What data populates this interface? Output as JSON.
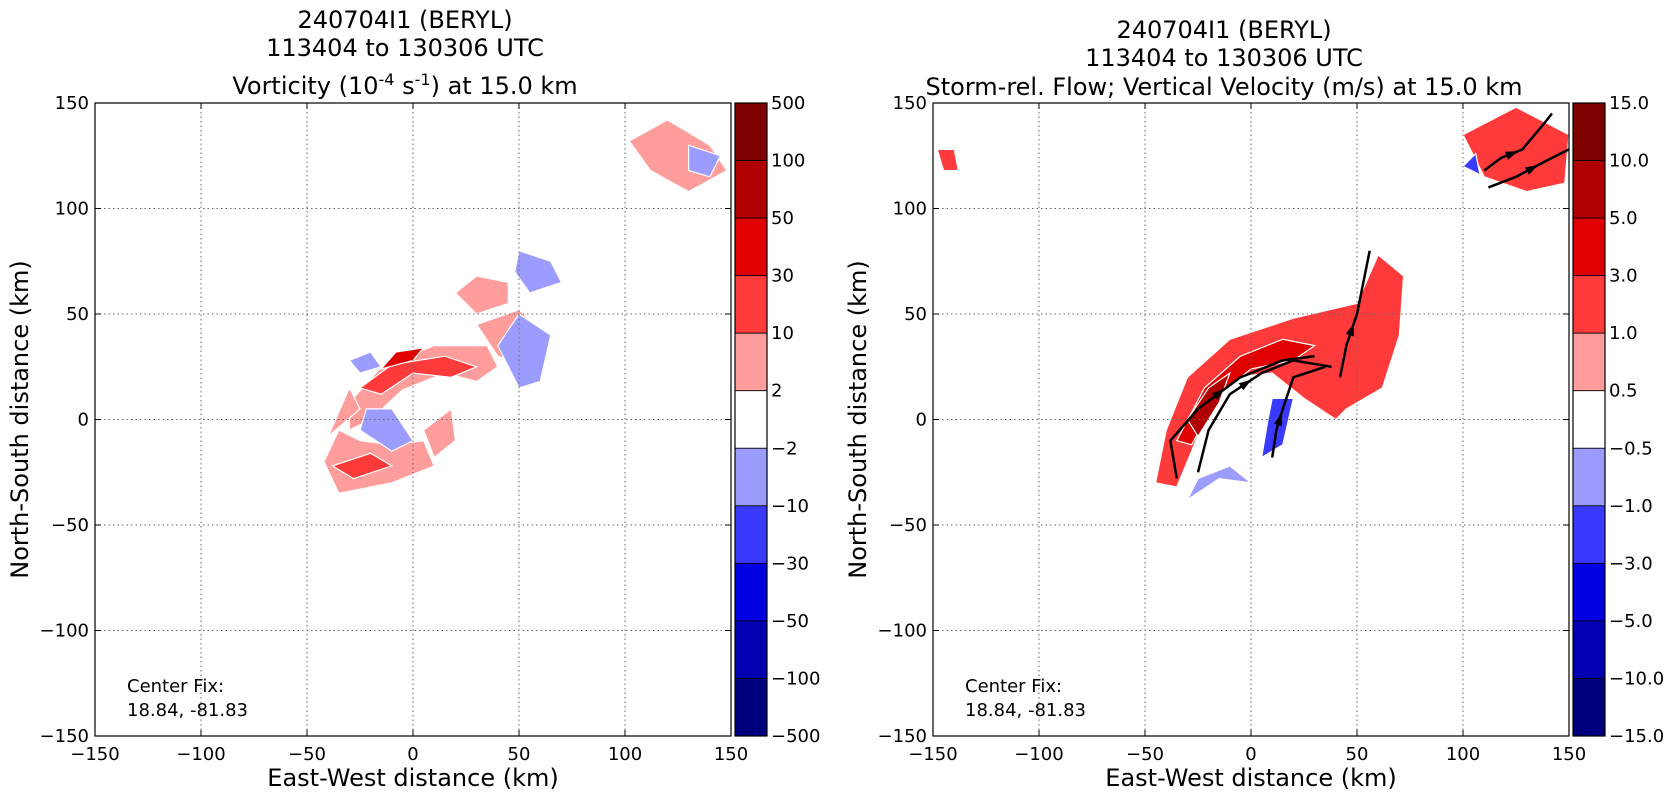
{
  "panels": [
    {
      "title_line1": "240704I1 (BERYL)",
      "title_line2": "113404 to 130306 UTC",
      "title_line3_pre": "Vorticity (10",
      "title_line3_sup1": "-4",
      "title_line3_mid": " s",
      "title_line3_sup2": "-1",
      "title_line3_post": ") at 15.0 km",
      "xlabel": "East-West distance (km)",
      "ylabel": "North-South distance (km)",
      "annotation_line1": "Center Fix:",
      "annotation_line2": "18.84, -81.83",
      "colorbar_labels": [
        "500",
        "100",
        "50",
        "30",
        "10",
        "2",
        "−2",
        "−10",
        "−30",
        "−50",
        "−100",
        "−500"
      ]
    },
    {
      "title_line1": "240704I1 (BERYL)",
      "title_line2": "113404 to 130306 UTC",
      "title_line3": "Storm-rel. Flow; Vertical Velocity (m/s) at 15.0 km",
      "xlabel": "East-West distance (km)",
      "ylabel": "North-South distance (km)",
      "annotation_line1": "Center Fix:",
      "annotation_line2": "18.84, -81.83",
      "colorbar_labels": [
        "15.0",
        "10.0",
        "5.0",
        "3.0",
        "1.0",
        "0.5",
        "−0.5",
        "−1.0",
        "−3.0",
        "−5.0",
        "−10.0",
        "−15.0"
      ]
    }
  ],
  "colors": {
    "levels": [
      "#7f0000",
      "#b00000",
      "#e00000",
      "#ff3a3a",
      "#ff9c9c",
      "#ffffff",
      "#9c9cff",
      "#3a3aff",
      "#0000e0",
      "#0000b0",
      "#00007f"
    ]
  },
  "chart_data": [
    {
      "type": "heatmap",
      "field": "vorticity",
      "xlim": [
        -150,
        150
      ],
      "ylim": [
        -150,
        150
      ],
      "xticks": [
        -150,
        -100,
        -50,
        0,
        50,
        100,
        150
      ],
      "yticks": [
        -150,
        -100,
        -50,
        0,
        50,
        100,
        150
      ],
      "xtick_labels": [
        "−150",
        "−100",
        "−50",
        "0",
        "50",
        "100",
        "150"
      ],
      "ytick_labels": [
        "−150",
        "−100",
        "−50",
        "0",
        "50",
        "100",
        "150"
      ],
      "grid": true,
      "color_levels": [
        -500,
        -100,
        -50,
        -30,
        -10,
        -2,
        2,
        10,
        30,
        50,
        100,
        500
      ],
      "regions": [
        {
          "category": 4,
          "points": [
            [
              -42,
              -20
            ],
            [
              -35,
              -35
            ],
            [
              -10,
              -30
            ],
            [
              10,
              -22
            ],
            [
              5,
              -10
            ],
            [
              -10,
              -12
            ],
            [
              -25,
              -10
            ],
            [
              -35,
              -5
            ]
          ]
        },
        {
          "category": 3,
          "points": [
            [
              -38,
              -22
            ],
            [
              -28,
              -28
            ],
            [
              -10,
              -22
            ],
            [
              -20,
              -16
            ]
          ]
        },
        {
          "category": 4,
          "points": [
            [
              -30,
              8
            ],
            [
              -15,
              25
            ],
            [
              10,
              35
            ],
            [
              35,
              35
            ],
            [
              40,
              25
            ],
            [
              30,
              18
            ],
            [
              15,
              22
            ],
            [
              -5,
              14
            ],
            [
              -20,
              0
            ],
            [
              -30,
              -5
            ]
          ]
        },
        {
          "category": 3,
          "points": [
            [
              -25,
              15
            ],
            [
              -10,
              26
            ],
            [
              15,
              30
            ],
            [
              30,
              25
            ],
            [
              18,
              20
            ],
            [
              0,
              22
            ],
            [
              -15,
              12
            ]
          ]
        },
        {
          "category": 2,
          "points": [
            [
              -15,
              24
            ],
            [
              -8,
              32
            ],
            [
              5,
              34
            ],
            [
              0,
              28
            ]
          ]
        },
        {
          "category": 4,
          "points": [
            [
              20,
              60
            ],
            [
              30,
              68
            ],
            [
              45,
              65
            ],
            [
              45,
              55
            ],
            [
              30,
              50
            ]
          ]
        },
        {
          "category": 4,
          "points": [
            [
              30,
              45
            ],
            [
              50,
              52
            ],
            [
              62,
              40
            ],
            [
              55,
              25
            ],
            [
              40,
              30
            ]
          ]
        },
        {
          "category": 4,
          "points": [
            [
              -40,
              -8
            ],
            [
              -30,
              15
            ],
            [
              -25,
              5
            ]
          ]
        },
        {
          "category": 4,
          "points": [
            [
              5,
              -5
            ],
            [
              18,
              5
            ],
            [
              20,
              -10
            ],
            [
              10,
              -18
            ]
          ]
        },
        {
          "category": 6,
          "points": [
            [
              50,
              50
            ],
            [
              65,
              40
            ],
            [
              60,
              18
            ],
            [
              50,
              15
            ],
            [
              40,
              35
            ]
          ]
        },
        {
          "category": 6,
          "points": [
            [
              50,
              80
            ],
            [
              65,
              75
            ],
            [
              70,
              65
            ],
            [
              55,
              60
            ],
            [
              48,
              70
            ]
          ]
        },
        {
          "category": 6,
          "points": [
            [
              -25,
              -5
            ],
            [
              -10,
              -15
            ],
            [
              0,
              -10
            ],
            [
              -10,
              5
            ],
            [
              -22,
              5
            ]
          ]
        },
        {
          "category": 6,
          "points": [
            [
              -30,
              28
            ],
            [
              -20,
              32
            ],
            [
              -15,
              25
            ],
            [
              -25,
              22
            ]
          ]
        },
        {
          "category": 4,
          "points": [
            [
              102,
              132
            ],
            [
              120,
              142
            ],
            [
              140,
              130
            ],
            [
              148,
              118
            ],
            [
              130,
              108
            ],
            [
              112,
              118
            ]
          ]
        },
        {
          "category": 6,
          "points": [
            [
              130,
              130
            ],
            [
              145,
              125
            ],
            [
              140,
              115
            ],
            [
              130,
              118
            ]
          ]
        }
      ],
      "annotation": "Center Fix: 18.84, -81.83"
    },
    {
      "type": "heatmap",
      "field": "vertical_velocity",
      "xlim": [
        -150,
        150
      ],
      "ylim": [
        -150,
        150
      ],
      "xticks": [
        -150,
        -100,
        -50,
        0,
        50,
        100,
        150
      ],
      "yticks": [
        -150,
        -100,
        -50,
        0,
        50,
        100,
        150
      ],
      "xtick_labels": [
        "−150",
        "−100",
        "−50",
        "0",
        "50",
        "100",
        "150"
      ],
      "ytick_labels": [
        "−150",
        "−100",
        "−50",
        "0",
        "50",
        "100",
        "150"
      ],
      "grid": true,
      "color_levels": [
        -15,
        -10,
        -5,
        -3,
        -1,
        -0.5,
        0.5,
        1,
        3,
        5,
        10,
        15
      ],
      "regions": [
        {
          "category": 3,
          "points": [
            [
              -45,
              -30
            ],
            [
              -40,
              -5
            ],
            [
              -30,
              20
            ],
            [
              -10,
              38
            ],
            [
              20,
              48
            ],
            [
              50,
              55
            ],
            [
              60,
              78
            ],
            [
              72,
              68
            ],
            [
              70,
              40
            ],
            [
              62,
              15
            ],
            [
              45,
              5
            ],
            [
              40,
              0
            ],
            [
              25,
              10
            ],
            [
              10,
              22
            ],
            [
              -10,
              20
            ],
            [
              -20,
              5
            ],
            [
              -28,
              -15
            ],
            [
              -35,
              -32
            ]
          ]
        },
        {
          "category": 2,
          "points": [
            [
              -35,
              -10
            ],
            [
              -22,
              15
            ],
            [
              -5,
              30
            ],
            [
              15,
              38
            ],
            [
              30,
              35
            ],
            [
              20,
              28
            ],
            [
              0,
              24
            ],
            [
              -15,
              12
            ],
            [
              -28,
              -12
            ]
          ]
        },
        {
          "category": 1,
          "points": [
            [
              -30,
              0
            ],
            [
              -20,
              15
            ],
            [
              -10,
              22
            ],
            [
              -15,
              8
            ],
            [
              -25,
              -8
            ]
          ]
        },
        {
          "category": 6,
          "points": [
            [
              -30,
              -38
            ],
            [
              -15,
              -28
            ],
            [
              0,
              -30
            ],
            [
              -10,
              -22
            ],
            [
              -25,
              -28
            ]
          ]
        },
        {
          "category": 7,
          "points": [
            [
              5,
              -18
            ],
            [
              15,
              -12
            ],
            [
              20,
              10
            ],
            [
              10,
              10
            ],
            [
              8,
              0
            ]
          ]
        },
        {
          "category": 3,
          "points": [
            [
              100,
              135
            ],
            [
              125,
              148
            ],
            [
              150,
              135
            ],
            [
              148,
              112
            ],
            [
              130,
              108
            ],
            [
              110,
              115
            ]
          ]
        },
        {
          "category": 7,
          "points": [
            [
              100,
              120
            ],
            [
              106,
              126
            ],
            [
              108,
              116
            ]
          ]
        },
        {
          "category": 3,
          "points": [
            [
              -148,
              128
            ],
            [
              -140,
              128
            ],
            [
              -138,
              118
            ],
            [
              -145,
              118
            ]
          ]
        }
      ],
      "streamlines": [
        [
          [
            -35,
            -28
          ],
          [
            -38,
            -10
          ],
          [
            -25,
            5
          ],
          [
            -5,
            20
          ],
          [
            15,
            28
          ],
          [
            30,
            30
          ]
        ],
        [
          [
            -25,
            -25
          ],
          [
            -20,
            -5
          ],
          [
            -10,
            12
          ],
          [
            5,
            22
          ],
          [
            20,
            28
          ],
          [
            38,
            25
          ]
        ],
        [
          [
            10,
            -18
          ],
          [
            12,
            -5
          ],
          [
            15,
            5
          ],
          [
            20,
            20
          ],
          [
            35,
            25
          ]
        ],
        [
          [
            42,
            20
          ],
          [
            45,
            35
          ],
          [
            50,
            50
          ],
          [
            56,
            80
          ]
        ],
        [
          [
            110,
            118
          ],
          [
            118,
            124
          ],
          [
            128,
            128
          ],
          [
            138,
            140
          ],
          [
            142,
            145
          ]
        ],
        [
          [
            112,
            110
          ],
          [
            125,
            115
          ],
          [
            140,
            123
          ],
          [
            150,
            128
          ]
        ]
      ],
      "annotation": "Center Fix: 18.84, -81.83"
    }
  ]
}
